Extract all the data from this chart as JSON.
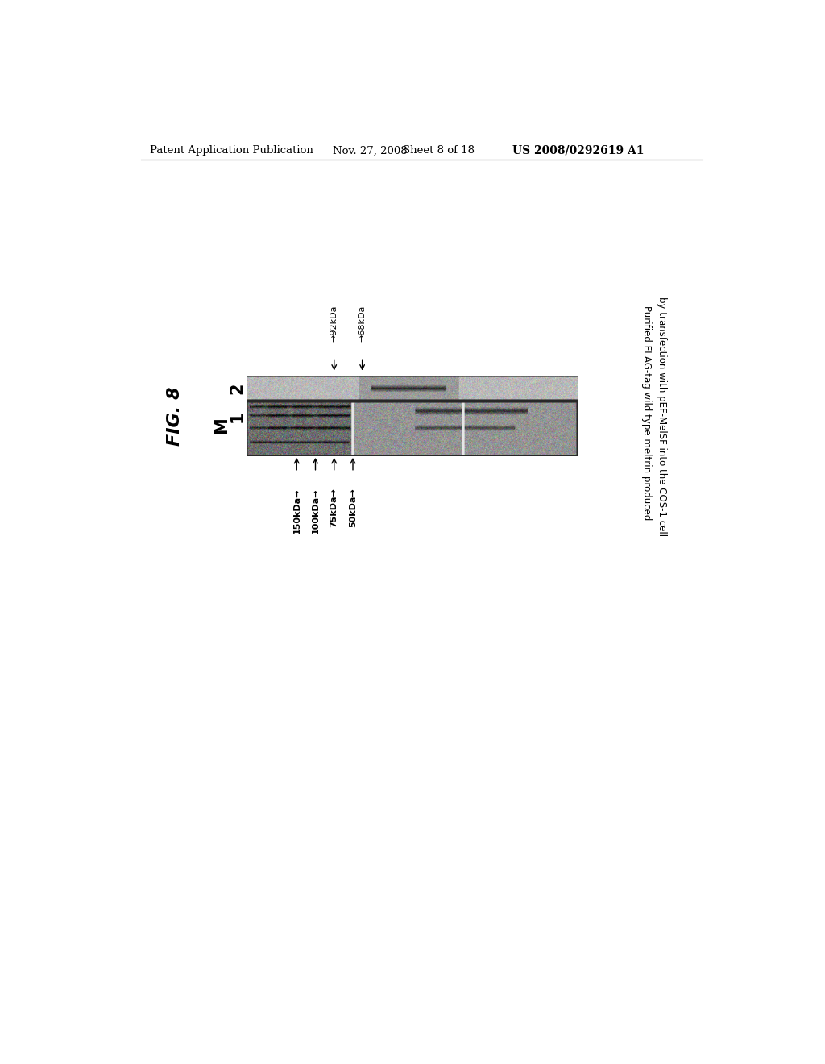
{
  "header_left": "Patent Application Publication",
  "header_date": "Nov. 27, 2008",
  "header_sheet": "Sheet 8 of 18",
  "header_right": "US 2008/0292619 A1",
  "fig_label": "FIG. 8",
  "lane_labels_rotated": [
    "M",
    "1",
    "2"
  ],
  "left_markers": [
    "150kDa→",
    "100kDa→",
    "75kDa→",
    "50kDa→"
  ],
  "right_markers": [
    "← 92kDa",
    "← 68kDa"
  ],
  "right_label_line1": "Purified FLAG-tag wild type meltrin produced",
  "right_label_line2": "by transfection with pEF-MelSF into the COS-1 cell",
  "bg_color": "#ffffff",
  "header_fontsize": 9.5,
  "fig_label_fontsize": 16
}
